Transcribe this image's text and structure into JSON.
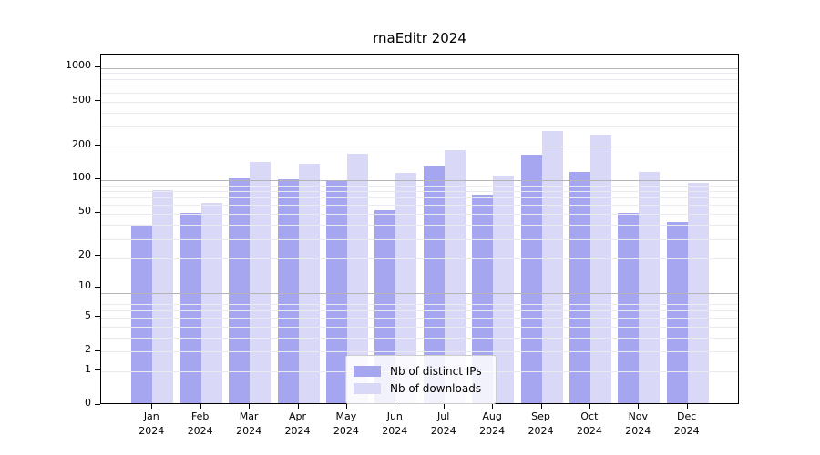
{
  "figure": {
    "title": "rnaEditr 2024",
    "background": "#ffffff"
  },
  "chart_data": {
    "type": "bar",
    "title": "rnaEditr 2024",
    "categories": [
      "Jan 2024",
      "Feb 2024",
      "Mar 2024",
      "Apr 2024",
      "May 2024",
      "Jun 2024",
      "Jul 2024",
      "Aug 2024",
      "Sep 2024",
      "Oct 2024",
      "Nov 2024",
      "Dec 2024"
    ],
    "month_labels": [
      "Jan",
      "Feb",
      "Mar",
      "Apr",
      "May",
      "Jun",
      "Jul",
      "Aug",
      "Sep",
      "Oct",
      "Nov",
      "Dec"
    ],
    "year_label": "2024",
    "series": [
      {
        "name": "Nb of distinct IPs",
        "color": "#a6a6f0",
        "values": [
          38,
          48,
          100,
          97,
          95,
          51,
          128,
          70,
          161,
          112,
          48,
          40
        ]
      },
      {
        "name": "Nb of downloads",
        "color": "#d9d9f7",
        "values": [
          78,
          60,
          140,
          133,
          165,
          110,
          178,
          104,
          265,
          242,
          112,
          90
        ]
      }
    ],
    "y_ticks": [
      0,
      1,
      2,
      5,
      10,
      20,
      50,
      100,
      200,
      500,
      1000
    ],
    "y_scale": "log10(value+1)",
    "ylim": [
      0,
      1300
    ],
    "xlabel": "",
    "ylabel": "",
    "grid": true,
    "legend_position": "bottom-center-inside"
  },
  "colors": {
    "bar_ips": "#a6a6f0",
    "bar_downloads": "#d9d9f7",
    "grid_major": "#b4b4b4",
    "grid_minor": "#e9e9f0",
    "axis": "#000000",
    "legend_border": "#cccccc"
  }
}
